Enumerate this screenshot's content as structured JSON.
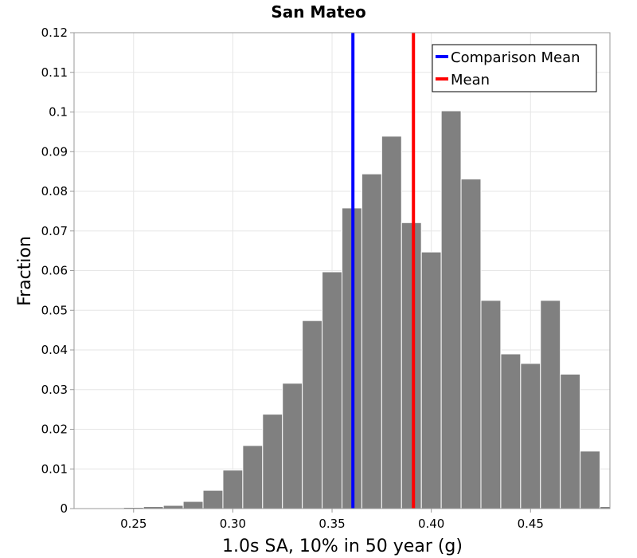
{
  "chart_data": {
    "type": "bar",
    "title": "San Mateo",
    "xlabel": "1.0s SA, 10% in 50 year (g)",
    "ylabel": "Fraction",
    "xlim": [
      0.22,
      0.49
    ],
    "ylim": [
      0,
      0.12
    ],
    "bin_width": 0.01,
    "xticks": [
      0.25,
      0.3,
      0.35,
      0.4,
      0.45
    ],
    "xtick_labels": [
      "0.25",
      "0.30",
      "0.35",
      "0.40",
      "0.45"
    ],
    "yticks": [
      0,
      0.01,
      0.02,
      0.03,
      0.04,
      0.05,
      0.06,
      0.07,
      0.08,
      0.09,
      0.1,
      0.11,
      0.12
    ],
    "ytick_labels": [
      "0",
      "0.01",
      "0.02",
      "0.03",
      "0.04",
      "0.05",
      "0.06",
      "0.07",
      "0.08",
      "0.09",
      "0.1",
      "0.11",
      "0.12"
    ],
    "bins": [
      {
        "x": 0.23,
        "value": 0.0002
      },
      {
        "x": 0.24,
        "value": 0.0002
      },
      {
        "x": 0.25,
        "value": 0.0003
      },
      {
        "x": 0.26,
        "value": 0.0005
      },
      {
        "x": 0.27,
        "value": 0.0008
      },
      {
        "x": 0.28,
        "value": 0.0018
      },
      {
        "x": 0.29,
        "value": 0.0046
      },
      {
        "x": 0.3,
        "value": 0.0097
      },
      {
        "x": 0.31,
        "value": 0.0159
      },
      {
        "x": 0.32,
        "value": 0.0238
      },
      {
        "x": 0.33,
        "value": 0.0316
      },
      {
        "x": 0.34,
        "value": 0.0474
      },
      {
        "x": 0.35,
        "value": 0.0597
      },
      {
        "x": 0.36,
        "value": 0.0758
      },
      {
        "x": 0.37,
        "value": 0.0844
      },
      {
        "x": 0.38,
        "value": 0.0939
      },
      {
        "x": 0.39,
        "value": 0.0721
      },
      {
        "x": 0.4,
        "value": 0.0647
      },
      {
        "x": 0.41,
        "value": 0.1003
      },
      {
        "x": 0.42,
        "value": 0.0831
      },
      {
        "x": 0.43,
        "value": 0.0525
      },
      {
        "x": 0.44,
        "value": 0.039
      },
      {
        "x": 0.45,
        "value": 0.0366
      },
      {
        "x": 0.46,
        "value": 0.0525
      },
      {
        "x": 0.47,
        "value": 0.0339
      },
      {
        "x": 0.48,
        "value": 0.0145
      },
      {
        "x": 0.49,
        "value": 0.0005
      }
    ],
    "vlines": [
      {
        "name": "Comparison Mean",
        "x": 0.3605,
        "color": "#0000ff"
      },
      {
        "name": "Mean",
        "x": 0.391,
        "color": "#ff0000"
      }
    ],
    "bar_color": "#808080",
    "grid": true,
    "legend_position": "top-right"
  }
}
